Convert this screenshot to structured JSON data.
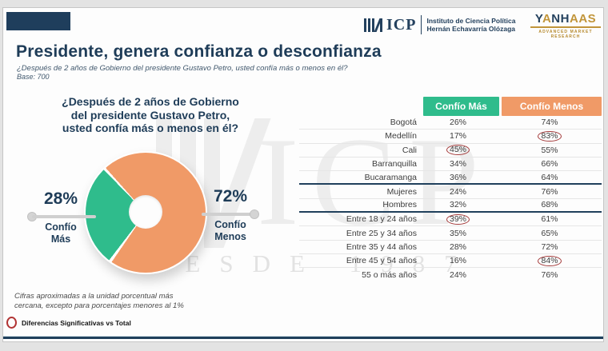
{
  "colors": {
    "green": "#2fbc8c",
    "orange": "#f09a67",
    "navy": "#1e3c58",
    "gold": "#b68a2e",
    "red_circle": "#a53c3c"
  },
  "header": {
    "title": "Presidente, genera confianza o desconfianza",
    "subtitle": "¿Después de 2 años de Gobierno del presidente Gustavo Petro, usted confía más o menos en él?",
    "base_label": "Base: 700",
    "icp_logo": {
      "text": "ICP",
      "line1": "Instituto de Ciencia Política",
      "line2": "Hernán Echavarría Olózaga"
    },
    "yanhaas": {
      "name": "YANHAAS",
      "letters": [
        {
          "ch": "Y",
          "color": "#24415e"
        },
        {
          "ch": "A",
          "color": "#c1953a"
        },
        {
          "ch": "N",
          "color": "#24415e"
        },
        {
          "ch": "H",
          "color": "#24415e"
        },
        {
          "ch": "A",
          "color": "#c1953a"
        },
        {
          "ch": "A",
          "color": "#c1953a"
        },
        {
          "ch": "S",
          "color": "#c1953a"
        }
      ],
      "tagline": "ADVANCED MARKET RESEARCH"
    }
  },
  "question": {
    "lines": [
      "¿Después de 2 años de Gobierno",
      "del presidente Gustavo Petro,",
      "usted confía más o menos en él?"
    ]
  },
  "chart_data": {
    "type": "pie",
    "subtype": "donut",
    "title": "¿Después de 2 años de Gobierno del presidente Gustavo Petro, usted confía más o menos en él?",
    "labels": [
      "Confío Más",
      "Confío Menos"
    ],
    "values": [
      28,
      72
    ],
    "unit": "%",
    "colors": [
      "#2fbc8c",
      "#f09a67"
    ],
    "start_angle_deg": 216,
    "callouts": [
      {
        "pct": "28%",
        "line1": "Confío",
        "line2": "Más"
      },
      {
        "pct": "72%",
        "line1": "Confío",
        "line2": "Menos"
      }
    ]
  },
  "table": {
    "headers": [
      {
        "label": "Confío Más",
        "color": "#2fbc8c"
      },
      {
        "label": "Confío Menos",
        "color": "#f09a67"
      }
    ],
    "rows": [
      {
        "label": "Bogotá",
        "mas": "26%",
        "menos": "74%",
        "mas_circled": false,
        "menos_circled": false,
        "section_end": false
      },
      {
        "label": "Medellín",
        "mas": "17%",
        "menos": "83%",
        "mas_circled": false,
        "menos_circled": true,
        "section_end": false
      },
      {
        "label": "Cali",
        "mas": "45%",
        "menos": "55%",
        "mas_circled": true,
        "menos_circled": false,
        "section_end": false
      },
      {
        "label": "Barranquilla",
        "mas": "34%",
        "menos": "66%",
        "mas_circled": false,
        "menos_circled": false,
        "section_end": false
      },
      {
        "label": "Bucaramanga",
        "mas": "36%",
        "menos": "64%",
        "mas_circled": false,
        "menos_circled": false,
        "section_end": true
      },
      {
        "label": "Mujeres",
        "mas": "24%",
        "menos": "76%",
        "mas_circled": false,
        "menos_circled": false,
        "section_end": false
      },
      {
        "label": "Hombres",
        "mas": "32%",
        "menos": "68%",
        "mas_circled": false,
        "menos_circled": false,
        "section_end": true
      },
      {
        "label": "Entre 18 y 24 años",
        "mas": "39%",
        "menos": "61%",
        "mas_circled": true,
        "menos_circled": false,
        "section_end": false
      },
      {
        "label": "Entre 25 y 34 años",
        "mas": "35%",
        "menos": "65%",
        "mas_circled": false,
        "menos_circled": false,
        "section_end": false
      },
      {
        "label": "Entre 35 y 44 años",
        "mas": "28%",
        "menos": "72%",
        "mas_circled": false,
        "menos_circled": false,
        "section_end": false
      },
      {
        "label": "Entre 45 y 54 años",
        "mas": "16%",
        "menos": "84%",
        "mas_circled": false,
        "menos_circled": true,
        "section_end": false
      },
      {
        "label": "55 o más años",
        "mas": "24%",
        "menos": "76%",
        "mas_circled": false,
        "menos_circled": false,
        "section_end": false
      }
    ]
  },
  "footer": {
    "note_line1": "Cifras aproximadas a la unidad porcentual más",
    "note_line2": "cercana, excepto para porcentajes menores al 1%",
    "legend_label": "Diferencias Significativas vs Total"
  },
  "watermark": {
    "text": "ICP",
    "subtext": "DESDE 1987"
  }
}
